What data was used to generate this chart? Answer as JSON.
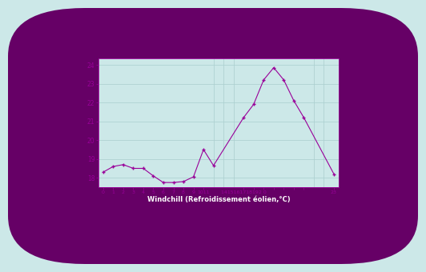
{
  "x": [
    0,
    1,
    2,
    3,
    4,
    5,
    6,
    7,
    8,
    9,
    10,
    11,
    14,
    15,
    16,
    17,
    18,
    19,
    20,
    23
  ],
  "y": [
    18.3,
    18.6,
    18.7,
    18.5,
    18.5,
    18.1,
    17.75,
    17.75,
    17.8,
    18.05,
    19.5,
    18.65,
    21.2,
    21.9,
    23.2,
    23.85,
    23.2,
    22.1,
    21.2,
    18.2
  ],
  "line_color": "#990099",
  "bg_color": "#cce8e8",
  "grid_color": "#aacece",
  "xlabel": "Windchill (Refroidissement éolien,°C)",
  "xlabel_color": "#990099",
  "ylabel_ticks": [
    18,
    19,
    20,
    21,
    22,
    23,
    24
  ],
  "ylim": [
    17.5,
    24.35
  ],
  "xlim": [
    -0.5,
    23.5
  ],
  "xtick_positions": [
    0,
    1,
    2,
    3,
    4,
    5,
    6,
    7,
    8,
    9,
    10,
    14,
    15,
    16,
    17,
    18,
    19,
    20,
    23
  ],
  "xtick_labels": [
    "0",
    "1",
    "2",
    "3",
    "4",
    "5",
    "6",
    "7",
    "8",
    "9",
    "1011",
    "1415161718192 0",
    "",
    "",
    "",
    "",
    "",
    "",
    "23"
  ],
  "title_bg_color": "#660066",
  "marker_size": 3.5
}
